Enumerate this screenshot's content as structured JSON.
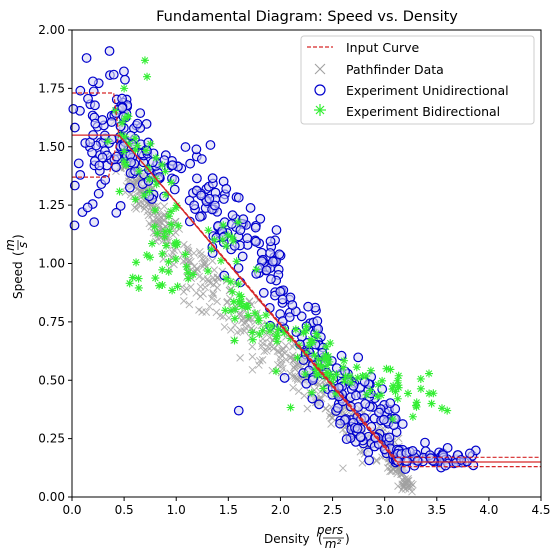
{
  "chart_data": {
    "type": "scatter",
    "title": "Fundamental Diagram: Speed vs. Density",
    "xlabel": "Density",
    "xlabel_unit_num": "pers",
    "xlabel_unit_den": "m²",
    "ylabel": "Speed",
    "ylabel_unit_num": "m",
    "ylabel_unit_den": "s",
    "xlim": [
      0.0,
      4.5
    ],
    "ylim": [
      0.0,
      2.0
    ],
    "xticks": [
      "0.0",
      "0.5",
      "1.0",
      "1.5",
      "2.0",
      "2.5",
      "3.0",
      "3.5",
      "4.0",
      "4.5"
    ],
    "yticks": [
      "0.00",
      "0.25",
      "0.50",
      "0.75",
      "1.00",
      "1.25",
      "1.50",
      "1.75",
      "2.00"
    ],
    "grid": false,
    "legend_position": "top-right",
    "series": [
      {
        "name": "Input Curve",
        "kind": "curve",
        "color": "#d62728",
        "mean": [
          [
            0.0,
            1.55
          ],
          [
            0.45,
            1.55
          ],
          [
            3.12,
            0.15
          ],
          [
            4.5,
            0.15
          ]
        ],
        "upper": [
          [
            0.0,
            1.73
          ],
          [
            0.4,
            1.73
          ],
          [
            0.45,
            1.55
          ],
          [
            3.1,
            0.17
          ],
          [
            4.5,
            0.17
          ]
        ],
        "lower": [
          [
            0.0,
            1.37
          ],
          [
            0.35,
            1.37
          ],
          [
            0.45,
            1.55
          ],
          [
            3.15,
            0.13
          ],
          [
            4.5,
            0.13
          ]
        ]
      },
      {
        "name": "Pathfinder Data",
        "kind": "x-marker",
        "color": "#a0a0a0",
        "clusters": [
          {
            "x0": 0.45,
            "y0": 1.48,
            "x1": 1.0,
            "y1": 1.04,
            "spread": 0.06,
            "n": 160
          },
          {
            "x0": 1.0,
            "y0": 1.04,
            "x1": 2.0,
            "y1": 0.62,
            "spread": 0.07,
            "n": 150
          },
          {
            "x0": 2.0,
            "y0": 0.62,
            "x1": 3.1,
            "y1": 0.15,
            "spread": 0.06,
            "n": 190
          },
          {
            "x0": 3.05,
            "y0": 0.2,
            "x1": 3.25,
            "y1": 0.02,
            "spread": 0.03,
            "n": 80
          }
        ]
      },
      {
        "name": "Experiment Unidirectional",
        "kind": "circle",
        "color": "#0000cc",
        "clusters": [
          {
            "x0": 0.1,
            "y0": 1.45,
            "x1": 0.55,
            "y1": 1.6,
            "spread": 0.15,
            "n": 70
          },
          {
            "x0": 0.4,
            "y0": 1.7,
            "x1": 0.8,
            "y1": 1.35,
            "spread": 0.08,
            "n": 60
          },
          {
            "x0": 0.7,
            "y0": 1.5,
            "x1": 1.3,
            "y1": 1.25,
            "spread": 0.07,
            "n": 30
          },
          {
            "x0": 1.2,
            "y0": 1.3,
            "x1": 2.0,
            "y1": 0.95,
            "spread": 0.1,
            "n": 90
          },
          {
            "x0": 1.9,
            "y0": 0.95,
            "x1": 2.4,
            "y1": 0.6,
            "spread": 0.08,
            "n": 50
          },
          {
            "x0": 2.2,
            "y0": 0.6,
            "x1": 3.1,
            "y1": 0.3,
            "spread": 0.07,
            "n": 110
          },
          {
            "x0": 2.6,
            "y0": 0.3,
            "x1": 3.2,
            "y1": 0.15,
            "spread": 0.04,
            "n": 40
          },
          {
            "x0": 3.1,
            "y0": 0.17,
            "x1": 3.9,
            "y1": 0.16,
            "spread": 0.02,
            "n": 55
          }
        ],
        "outliers": [
          [
            0.36,
            1.91
          ],
          [
            0.08,
            1.74
          ],
          [
            0.1,
            1.22
          ],
          [
            0.15,
            1.24
          ],
          [
            1.48,
            1.32
          ],
          [
            2.04,
            0.51
          ],
          [
            1.6,
            0.37
          ]
        ]
      },
      {
        "name": "Experiment Bidirectional",
        "kind": "star",
        "color": "#33ee33",
        "clusters": [
          {
            "x0": 0.4,
            "y0": 1.55,
            "x1": 1.0,
            "y1": 1.2,
            "spread": 0.08,
            "n": 40
          },
          {
            "x0": 0.6,
            "y0": 1.0,
            "x1": 1.6,
            "y1": 1.1,
            "spread": 0.08,
            "n": 45
          },
          {
            "x0": 1.5,
            "y0": 0.85,
            "x1": 2.5,
            "y1": 0.55,
            "spread": 0.07,
            "n": 70
          },
          {
            "x0": 2.3,
            "y0": 0.55,
            "x1": 3.5,
            "y1": 0.4,
            "spread": 0.05,
            "n": 50
          }
        ],
        "outliers": [
          [
            0.7,
            1.87
          ],
          [
            0.72,
            1.8
          ],
          [
            0.5,
            1.75
          ],
          [
            3.55,
            0.38
          ],
          [
            3.6,
            0.37
          ],
          [
            3.45,
            0.4
          ]
        ]
      }
    ]
  }
}
